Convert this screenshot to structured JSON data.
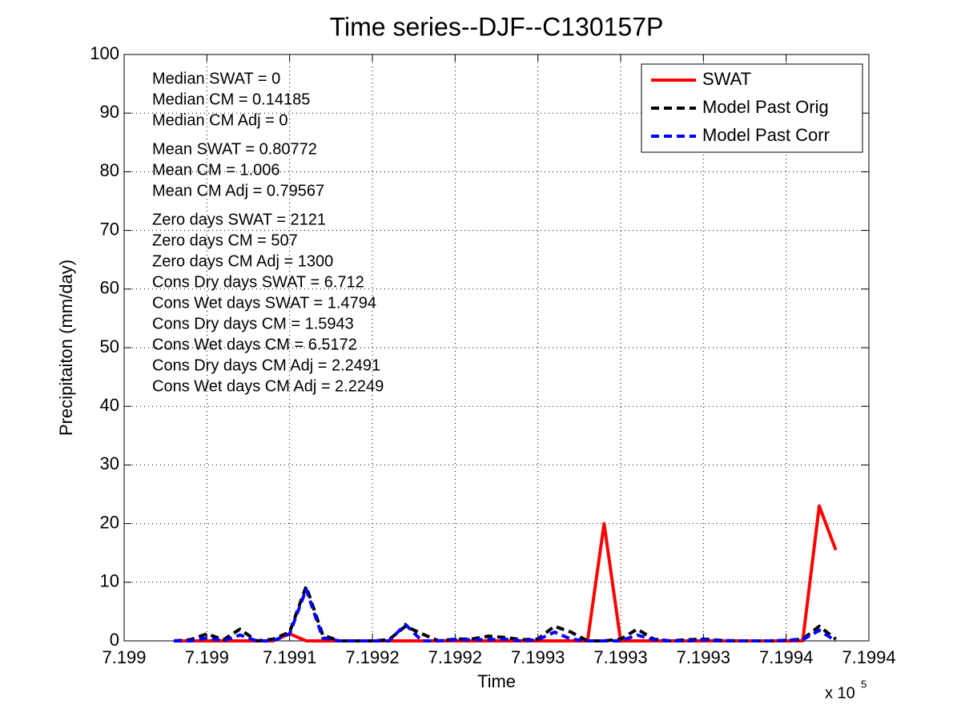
{
  "chart_data": {
    "type": "line",
    "title": "Time series--DJF--C130157P",
    "xlabel": "Time",
    "ylabel": "Precipitaiton (mm/day)",
    "x_multiplier": "x 10",
    "x_multiplier_exp": "5",
    "x": [
      719903,
      719904,
      719905,
      719906,
      719907,
      719908,
      719909,
      719910,
      719911,
      719912,
      719913,
      719914,
      719915,
      719916,
      719917,
      719918,
      719919,
      719920,
      719921,
      719922,
      719923,
      719924,
      719925,
      719926,
      719927,
      719928,
      719929,
      719930,
      719931,
      719932,
      719933,
      719934,
      719935,
      719936,
      719937,
      719938,
      719939,
      719940,
      719941,
      719942,
      719943
    ],
    "series": [
      {
        "name": "SWAT",
        "color": "#ff0000",
        "dashed": false,
        "values": [
          0,
          0,
          0,
          0,
          0,
          0,
          0,
          1.2,
          0,
          0,
          0,
          0,
          0,
          0,
          0,
          0,
          0,
          0,
          0,
          0,
          0,
          0,
          0,
          0,
          0,
          0,
          20,
          0,
          0,
          0,
          0,
          0,
          0,
          0,
          0,
          0,
          0,
          0,
          0,
          23,
          15.5
        ]
      },
      {
        "name": "Model Past Orig",
        "color": "#000000",
        "dashed": true,
        "values": [
          0,
          0.2,
          1.2,
          0.2,
          2,
          0,
          0.3,
          1.5,
          9.3,
          1,
          0,
          0,
          0,
          0.2,
          2.5,
          1.2,
          0,
          0.3,
          0.3,
          0.8,
          0.6,
          0.2,
          0.3,
          2.5,
          1.5,
          0,
          0,
          0.3,
          2,
          0.3,
          0,
          0.2,
          0.3,
          0.1,
          0,
          0,
          0,
          0.1,
          0.3,
          2.5,
          0.3
        ]
      },
      {
        "name": "Model Past Corr",
        "color": "#0000ff",
        "dashed": true,
        "values": [
          0,
          0,
          0.5,
          0,
          1,
          0,
          0,
          1.2,
          8.8,
          0.5,
          0,
          0,
          0,
          0,
          2.8,
          0,
          0,
          0.2,
          0.2,
          0.2,
          0.3,
          0,
          0.2,
          1.5,
          0.3,
          0,
          0,
          0,
          1,
          0.2,
          0,
          0,
          0.2,
          0,
          0,
          0,
          0,
          0.1,
          0.2,
          1.8,
          0
        ]
      }
    ],
    "xlim": [
      719900,
      719945
    ],
    "xticks": [
      {
        "value": 719900,
        "label": "7.199"
      },
      {
        "value": 719905,
        "label": "7.199"
      },
      {
        "value": 719910,
        "label": "7.1991"
      },
      {
        "value": 719915,
        "label": "7.1992"
      },
      {
        "value": 719920,
        "label": "7.1992"
      },
      {
        "value": 719925,
        "label": "7.1993"
      },
      {
        "value": 719930,
        "label": "7.1993"
      },
      {
        "value": 719935,
        "label": "7.1993"
      },
      {
        "value": 719940,
        "label": "7.1994"
      },
      {
        "value": 719945,
        "label": "7.1994"
      }
    ],
    "ylim": [
      0,
      100
    ],
    "yticks": [
      0,
      10,
      20,
      30,
      40,
      50,
      60,
      70,
      80,
      90,
      100
    ],
    "grid": true,
    "legend": "northeast",
    "annotations": [
      [
        "Median SWAT = 0",
        "Median CM = 0.14185",
        "Median CM Adj = 0"
      ],
      [
        "Mean SWAT = 0.80772",
        "Mean CM = 1.006",
        "Mean CM Adj = 0.79567"
      ],
      [
        "Zero days SWAT = 2121",
        "Zero days CM = 507",
        "Zero days CM Adj = 1300",
        "Cons Dry days SWAT = 6.712",
        "Cons Wet days SWAT = 1.4794",
        "Cons Dry days CM = 1.5943",
        "Cons Wet days CM = 6.5172",
        "Cons Dry days CM Adj = 2.2491",
        "Cons Wet days CM Adj = 2.2249"
      ]
    ]
  }
}
